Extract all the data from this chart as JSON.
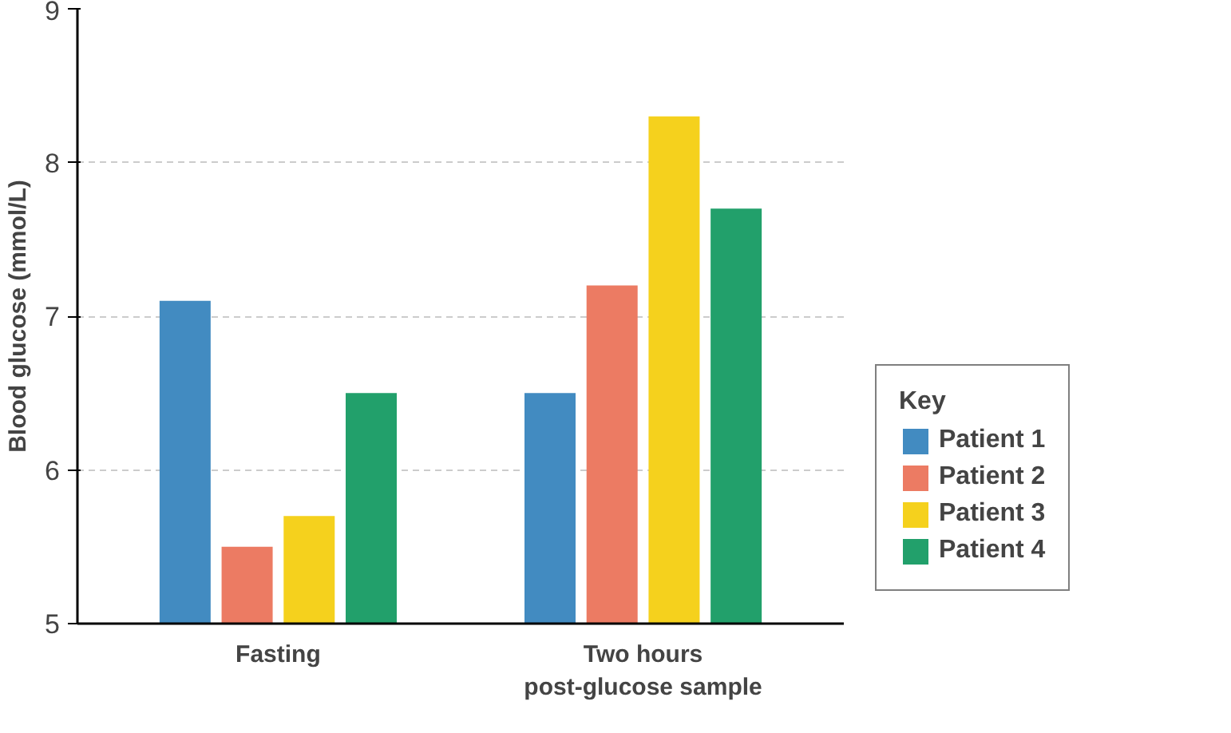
{
  "chart_data": {
    "type": "bar",
    "ylabel": "Blood glucose (mmol/L)",
    "legend_title": "Key",
    "categories": [
      "Fasting",
      "Two hours\npost-glucose sample"
    ],
    "series": [
      {
        "name": "Patient 1",
        "color": "#428bc1",
        "values": [
          7.1,
          6.5
        ]
      },
      {
        "name": "Patient 2",
        "color": "#ec7b63",
        "values": [
          5.5,
          7.2
        ]
      },
      {
        "name": "Patient 3",
        "color": "#f5d11d",
        "values": [
          5.7,
          8.3
        ]
      },
      {
        "name": "Patient 4",
        "color": "#22a06b",
        "values": [
          6.5,
          7.7
        ]
      }
    ],
    "ylim": [
      5,
      9
    ],
    "yticks": [
      5,
      6,
      7,
      8,
      9
    ],
    "grid": "y",
    "legend": "right"
  }
}
